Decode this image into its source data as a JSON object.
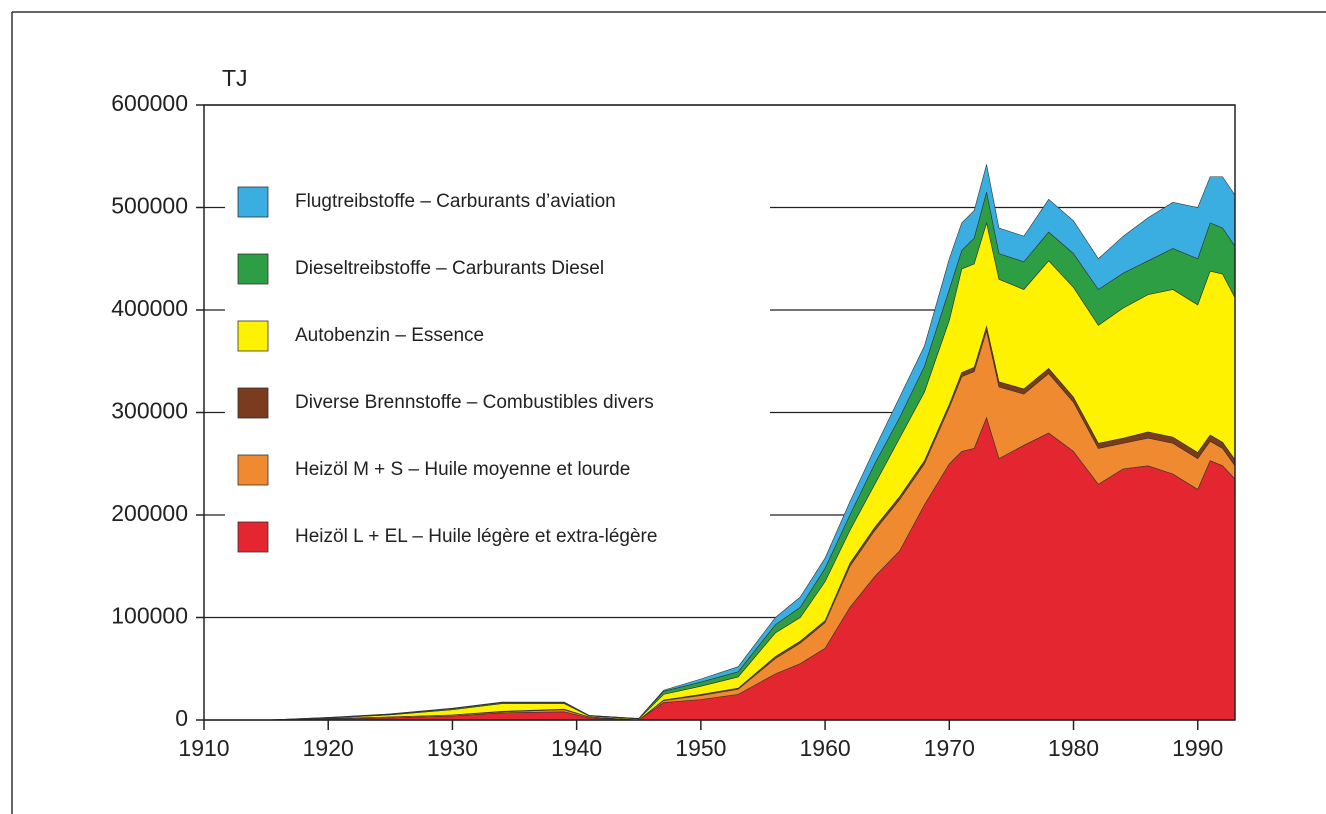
{
  "chart_data": {
    "type": "stacked_area",
    "y_label": "TJ",
    "x": [
      1910,
      1915,
      1920,
      1925,
      1930,
      1934,
      1939,
      1941,
      1945,
      1947,
      1950,
      1953,
      1956,
      1958,
      1960,
      1962,
      1964,
      1966,
      1968,
      1970,
      1971,
      1972,
      1973,
      1974,
      1976,
      1978,
      1980,
      1982,
      1984,
      1986,
      1988,
      1990,
      1991,
      1992,
      1993
    ],
    "series": [
      {
        "name": "Heizöl L + EL – Huile légère et extra-légère",
        "color": "#e3262f",
        "values": [
          0,
          0,
          1000,
          2000,
          4000,
          7000,
          8000,
          2000,
          0,
          17000,
          20000,
          25000,
          45000,
          55000,
          70000,
          110000,
          140000,
          165000,
          210000,
          250000,
          262000,
          265000,
          295000,
          255000,
          268000,
          280000,
          262000,
          230000,
          245000,
          248000,
          240000,
          225000,
          253000,
          248000,
          235000
        ]
      },
      {
        "name": "Heizöl M + S – Huile moyenne et lourde",
        "color": "#f08a30",
        "values": [
          0,
          0,
          500,
          1000,
          1000,
          1000,
          2000,
          1000,
          0,
          2000,
          4000,
          5000,
          15000,
          20000,
          25000,
          40000,
          45000,
          50000,
          40000,
          55000,
          73000,
          75000,
          85000,
          70000,
          50000,
          58000,
          48000,
          35000,
          25000,
          27000,
          30000,
          30000,
          19000,
          17000,
          13000
        ]
      },
      {
        "name": "Diverse Brennstoffe – Combustibles divers",
        "color": "#7a3b1e",
        "values": [
          0,
          0,
          0,
          0,
          0,
          500,
          500,
          0,
          0,
          500,
          1000,
          1000,
          2000,
          2000,
          2000,
          3000,
          3000,
          3000,
          3000,
          3000,
          4000,
          4000,
          4000,
          5000,
          5000,
          5000,
          5000,
          5000,
          5000,
          6000,
          6000,
          6000,
          6000,
          6000,
          6000
        ]
      },
      {
        "name": "Autobenzin – Essence",
        "color": "#fff200",
        "values": [
          0,
          0,
          500,
          2000,
          5000,
          7500,
          5500,
          1000,
          1000,
          5500,
          8000,
          11000,
          23000,
          23000,
          38000,
          32000,
          42000,
          57000,
          67000,
          82000,
          101000,
          101000,
          101000,
          100000,
          97000,
          105000,
          107000,
          115000,
          127000,
          134000,
          144000,
          144000,
          160000,
          164000,
          158000
        ]
      },
      {
        "name": "Dieseltreibstoffe – Carburants Diesel",
        "color": "#2e9e44",
        "values": [
          0,
          0,
          500,
          500,
          1000,
          1000,
          1000,
          500,
          500,
          3000,
          4000,
          5000,
          8000,
          10000,
          13000,
          15000,
          20000,
          20000,
          25000,
          30000,
          18000,
          25000,
          30000,
          25000,
          27000,
          28000,
          33000,
          35000,
          34000,
          33000,
          40000,
          45000,
          47000,
          45000,
          50000
        ]
      },
      {
        "name": "Flugtreibstoffe – Carburants d’aviation",
        "color": "#3aaee0",
        "values": [
          0,
          0,
          0,
          500,
          500,
          500,
          500,
          0,
          0,
          1000,
          3000,
          5000,
          7000,
          10000,
          10000,
          13000,
          15000,
          20000,
          20000,
          30000,
          27000,
          27000,
          27000,
          25000,
          25000,
          32000,
          32000,
          30000,
          36000,
          42000,
          45000,
          50000,
          45000,
          50000,
          50000
        ]
      }
    ],
    "xlim": [
      1910,
      1993
    ],
    "xticks": [
      1910,
      1920,
      1930,
      1940,
      1950,
      1960,
      1970,
      1980,
      1990
    ],
    "ylim": [
      0,
      600000
    ],
    "yticks": [
      0,
      100000,
      200000,
      300000,
      400000,
      500000,
      600000
    ],
    "grid": true
  }
}
